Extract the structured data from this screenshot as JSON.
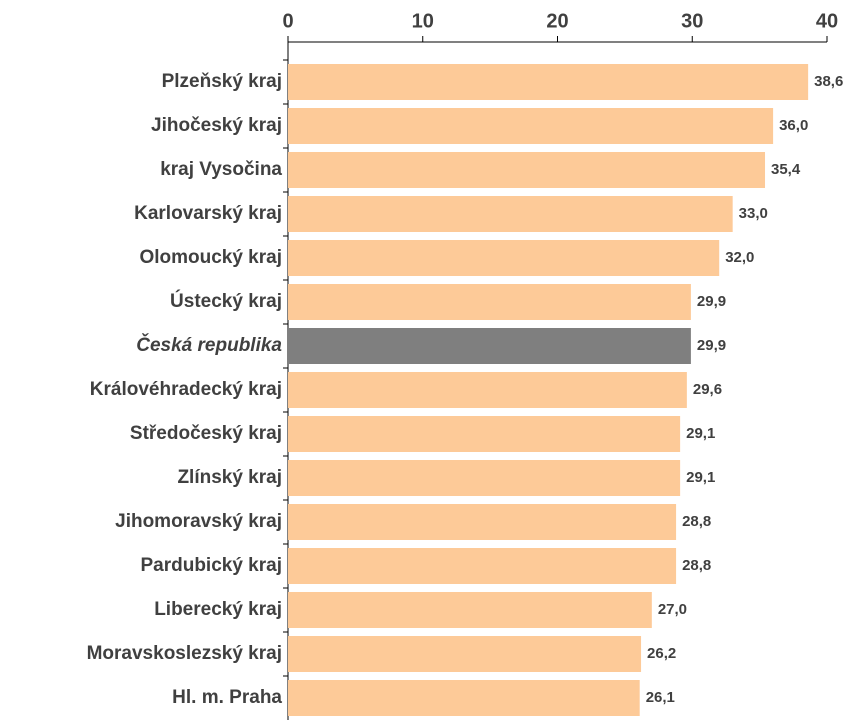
{
  "chart_data": {
    "type": "barh",
    "categories": [
      "Plzeňský kraj",
      "Jihočeský kraj",
      "kraj Vysočina",
      "Karlovarský kraj",
      "Olomoucký kraj",
      "Ústecký kraj",
      "Česká republika",
      "Královéhradecký kraj",
      "Středočeský kraj",
      "Zlínský kraj",
      "Jihomoravský kraj",
      "Pardubický kraj",
      "Liberecký kraj",
      "Moravskoslezský kraj",
      "Hl. m. Praha"
    ],
    "values": [
      38.6,
      36.0,
      35.4,
      33.0,
      32.0,
      29.9,
      29.9,
      29.6,
      29.1,
      29.1,
      28.8,
      28.8,
      27.0,
      26.2,
      26.1
    ],
    "value_labels": [
      "38,6",
      "36,0",
      "35,4",
      "33,0",
      "32,0",
      "29,9",
      "29,9",
      "29,6",
      "29,1",
      "29,1",
      "28,8",
      "28,8",
      "27,0",
      "26,2",
      "26,1"
    ],
    "color": "#fdca98",
    "colors": [
      "#fdca98",
      "#fdca98",
      "#fdca98",
      "#fdca98",
      "#fdca98",
      "#fdca98",
      "#7f7f7f",
      "#fdca98",
      "#fdca98",
      "#fdca98",
      "#fdca98",
      "#fdca98",
      "#fdca98",
      "#fdca98",
      "#fdca98"
    ],
    "xlim": [
      0,
      40
    ],
    "xticks": [
      0,
      10,
      20,
      30,
      40
    ],
    "x_axis_position": "top"
  }
}
